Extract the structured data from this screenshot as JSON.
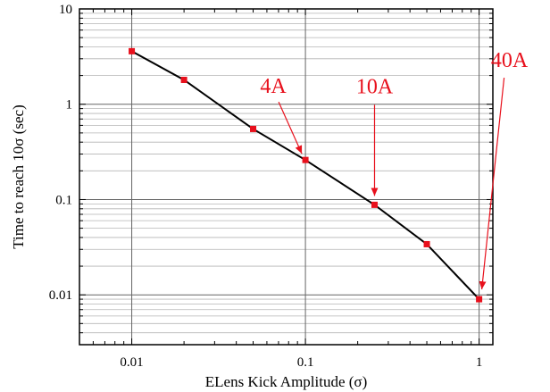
{
  "chart_data": {
    "type": "line",
    "xlabel": "ELens Kick Amplitude (σ)",
    "ylabel": "Time to reach 10σ (sec)",
    "x_scale": "log",
    "y_scale": "log",
    "xlim": [
      0.005,
      1.2
    ],
    "ylim": [
      0.003,
      10
    ],
    "x_ticks": [
      0.01,
      0.1,
      1
    ],
    "x_tick_labels": [
      "0.01",
      "0.1",
      "1"
    ],
    "y_ticks": [
      0.01,
      0.1,
      1,
      10
    ],
    "y_tick_labels": [
      "0.01",
      "0.1",
      "1",
      "10"
    ],
    "grid": true,
    "series": [
      {
        "x": [
          0.01,
          0.02,
          0.05,
          0.1,
          0.25,
          0.5,
          1.0
        ],
        "y": [
          3.6,
          1.8,
          0.55,
          0.26,
          0.088,
          0.034,
          0.009
        ]
      }
    ],
    "annotations": [
      {
        "text": "4A",
        "x": 0.1,
        "y": 0.26
      },
      {
        "text": "10A",
        "x": 0.25,
        "y": 0.088
      },
      {
        "text": "40A",
        "x": 1.0,
        "y": 0.009
      }
    ],
    "colors": {
      "line": "#000000",
      "marker": "#e8101c",
      "annotation": "#e8101c",
      "grid_major": "#666666",
      "grid_minor": "#b5b5b5"
    }
  }
}
